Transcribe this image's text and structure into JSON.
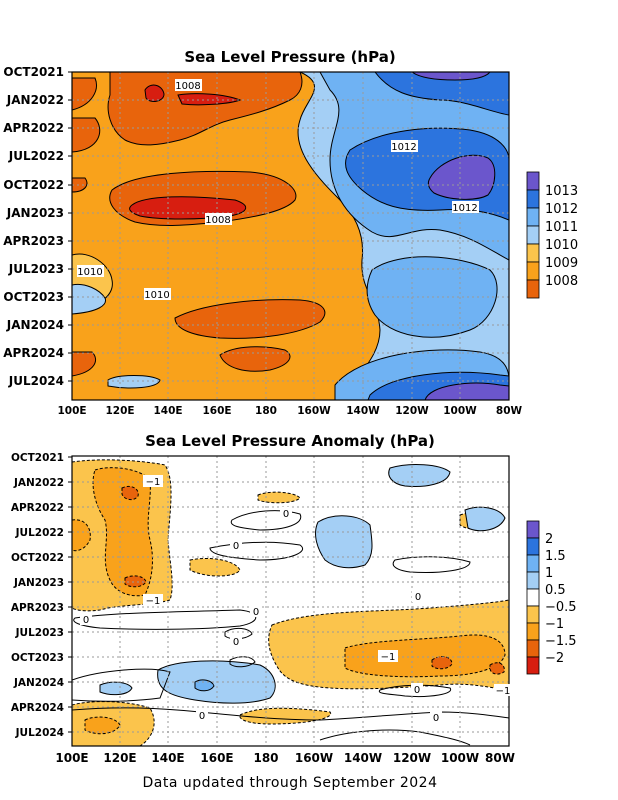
{
  "footer": "Data updated through September 2024",
  "colors": {
    "1008": "#d71e10",
    "1009": "#e8640c",
    "1010": "#f9a21b",
    "1011": "#fbc44c",
    "1012": "#a4cff5",
    "1013": "#6fb2f3",
    "1014": "#2c74de",
    "1015": "#6b56cc",
    "neg2": "#d71e10",
    "neg15": "#e8640c",
    "neg1": "#f9a21b",
    "neg05": "#fbc44c",
    "white": "#ffffff",
    "pos05": "#a4cff5",
    "pos1": "#6fb2f3",
    "pos15": "#2c74de",
    "pos2": "#6b56cc"
  },
  "chart_data": [
    {
      "type": "heatmap",
      "title": "Sea Level Pressure (hPa)",
      "x_ticks": [
        "100E",
        "120E",
        "140E",
        "160E",
        "180",
        "160W",
        "140W",
        "120W",
        "100W",
        "80W"
      ],
      "y_ticks": [
        "OCT2021",
        "JAN2022",
        "APR2022",
        "JUL2022",
        "OCT2022",
        "JAN2023",
        "APR2023",
        "JUL2023",
        "OCT2023",
        "JAN2024",
        "APR2024",
        "JUL2024"
      ],
      "colorbar_ticks": [
        "1013",
        "1012",
        "1011",
        "1010",
        "1009",
        "1008"
      ],
      "contour_labels": [
        "1008",
        "1012",
        "1008",
        "1012",
        "1010",
        "1010"
      ]
    },
    {
      "type": "heatmap",
      "title": "Sea Level Pressure Anomaly (hPa)",
      "x_ticks": [
        "100E",
        "120E",
        "140E",
        "160E",
        "180",
        "160W",
        "140W",
        "120W",
        "100W",
        "80W"
      ],
      "y_ticks": [
        "OCT2021",
        "JAN2022",
        "APR2022",
        "JUL2022",
        "OCT2022",
        "JAN2023",
        "APR2023",
        "JUL2023",
        "OCT2023",
        "JAN2024",
        "APR2024",
        "JUL2024"
      ],
      "colorbar_ticks": [
        "2",
        "1.5",
        "1",
        "0.5",
        "−0.5",
        "−1",
        "−1.5",
        "−2"
      ],
      "contour_labels": [
        "−1",
        "0",
        "0",
        "0",
        "−1",
        "0",
        "0",
        "0",
        "−1",
        "0",
        "−1",
        "0",
        "0"
      ]
    }
  ]
}
